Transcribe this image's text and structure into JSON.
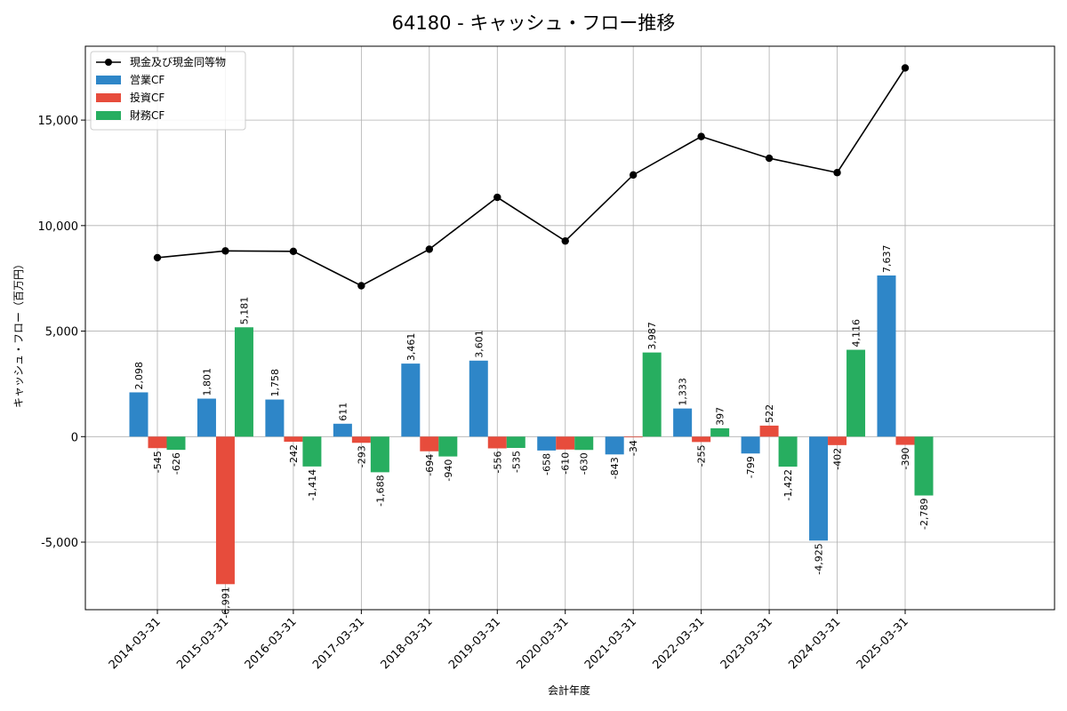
{
  "chart_data": {
    "type": "bar",
    "title": "64180 - キャッシュ・フロー推移",
    "xlabel": "会計年度",
    "ylabel": "キャッシュ・フロー（百万円）",
    "ylim": [
      -8200,
      18500
    ],
    "yticks": [
      -5000,
      0,
      5000,
      10000,
      15000
    ],
    "ytick_labels": [
      "-5,000",
      "0",
      "5,000",
      "10,000",
      "15,000"
    ],
    "grid": true,
    "legend_position": "top-left",
    "categories": [
      "2014-03-31",
      "2015-03-31",
      "2016-03-31",
      "2017-03-31",
      "2018-03-31",
      "2019-03-31",
      "2020-03-31",
      "2021-03-31",
      "2022-03-31",
      "2023-03-31",
      "2024-03-31",
      "2025-03-31"
    ],
    "series": [
      {
        "name": "営業CF",
        "kind": "bar",
        "color": "#2e86c8",
        "values": [
          2098,
          1801,
          1758,
          611,
          3461,
          3601,
          -658,
          -843,
          1333,
          -799,
          -4925,
          7637
        ],
        "labels": [
          "2,098",
          "1,801",
          "1,758",
          "611",
          "3,461",
          "3,601",
          "-658",
          "-843",
          "1,333",
          "-799",
          "-4,925",
          "7,637"
        ]
      },
      {
        "name": "投資CF",
        "kind": "bar",
        "color": "#e74c3c",
        "values": [
          -545,
          -6991,
          -242,
          -293,
          -694,
          -556,
          -610,
          -34,
          -255,
          522,
          -402,
          -390
        ],
        "labels": [
          "-545",
          "-6,991",
          "-242",
          "-293",
          "-694",
          "-556",
          "-610",
          "-34",
          "-255",
          "522",
          "-402",
          "-390"
        ]
      },
      {
        "name": "財務CF",
        "kind": "bar",
        "color": "#27ae60",
        "values": [
          -626,
          5181,
          -1414,
          -1688,
          -940,
          -535,
          -630,
          3987,
          397,
          -1422,
          4116,
          -2789
        ],
        "labels": [
          "-626",
          "5,181",
          "-1,414",
          "-1,688",
          "-940",
          "-535",
          "-630",
          "3,987",
          "397",
          "-1,422",
          "4,116",
          "-2,789"
        ]
      },
      {
        "name": "現金及び現金同等物",
        "kind": "line",
        "color": "#000000",
        "values": [
          8480,
          8800,
          8780,
          7150,
          8880,
          11340,
          9270,
          12400,
          14220,
          13190,
          12510,
          17470
        ]
      }
    ]
  }
}
